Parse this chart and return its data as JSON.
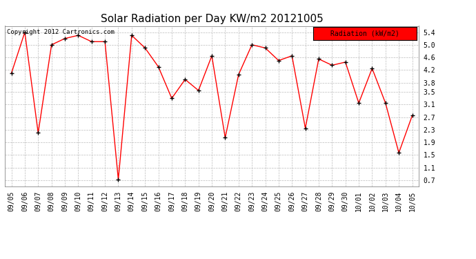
{
  "title": "Solar Radiation per Day KW/m2 20121005",
  "copyright": "Copyright 2012 Cartronics.com",
  "legend_label": "Radiation (kW/m2)",
  "dates": [
    "09/05",
    "09/06",
    "09/07",
    "09/08",
    "09/09",
    "09/10",
    "09/11",
    "09/12",
    "09/13",
    "09/14",
    "09/15",
    "09/16",
    "09/17",
    "09/18",
    "09/19",
    "09/20",
    "09/21",
    "09/22",
    "09/23",
    "09/24",
    "09/25",
    "09/26",
    "09/27",
    "09/28",
    "09/29",
    "09/30",
    "10/01",
    "10/02",
    "10/03",
    "10/04",
    "10/05"
  ],
  "values": [
    4.1,
    5.4,
    2.2,
    5.0,
    5.2,
    5.3,
    5.1,
    5.1,
    0.72,
    5.3,
    4.9,
    4.3,
    3.3,
    3.9,
    3.55,
    4.65,
    2.05,
    4.05,
    5.0,
    4.9,
    4.5,
    4.65,
    2.35,
    4.55,
    4.35,
    4.45,
    3.15,
    4.25,
    3.15,
    1.57,
    2.75
  ],
  "ylim": [
    0.5,
    5.6
  ],
  "yticks": [
    0.7,
    1.1,
    1.5,
    1.9,
    2.3,
    2.7,
    3.1,
    3.5,
    3.8,
    4.2,
    4.6,
    5.0,
    5.4
  ],
  "line_color": "red",
  "marker_color": "black",
  "bg_color": "#ffffff",
  "grid_color": "#bbbbbb",
  "title_fontsize": 11,
  "axis_fontsize": 7,
  "copyright_fontsize": 6.5,
  "legend_box_color": "red",
  "legend_text_color": "black",
  "legend_fontsize": 7
}
